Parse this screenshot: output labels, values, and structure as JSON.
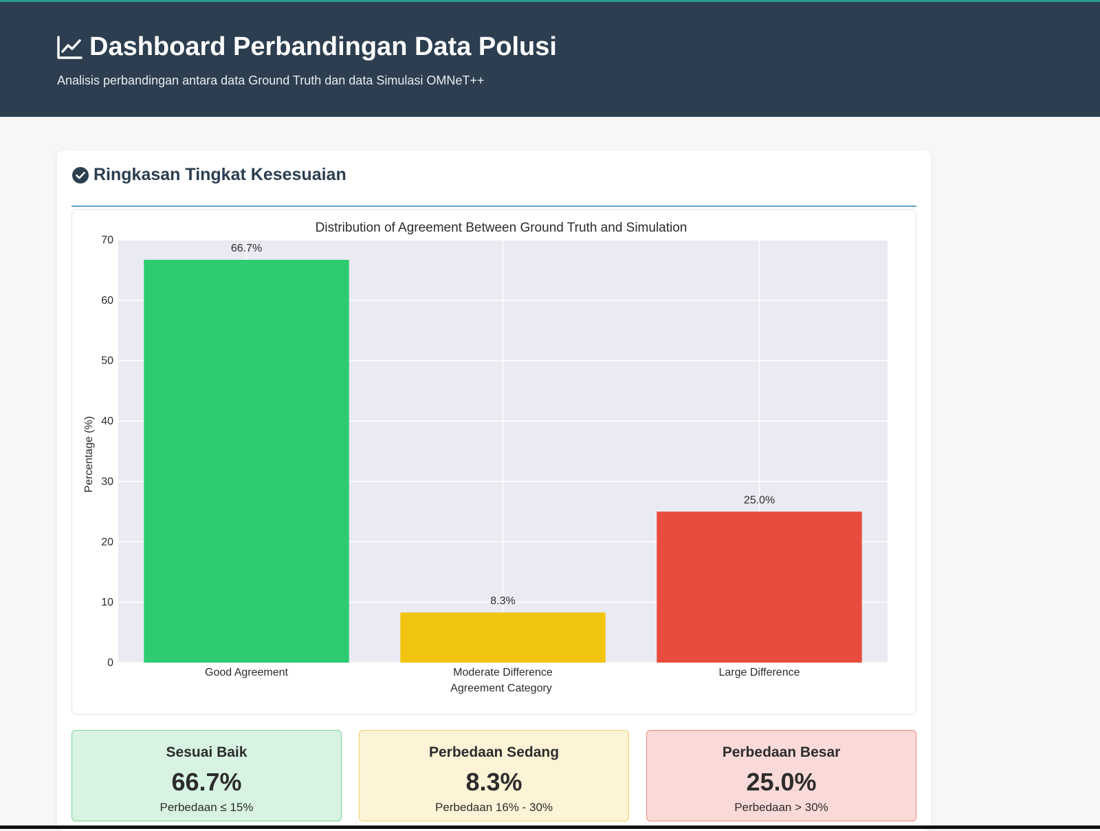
{
  "header": {
    "title": "Dashboard Perbandingan Data Polusi",
    "subtitle": "Analisis perbandingan antara data Ground Truth dan data Simulasi OMNeT++",
    "icon": "chart-line-icon"
  },
  "section": {
    "title": "Ringkasan Tingkat Kesesuaian",
    "icon": "check-circle-icon"
  },
  "chart_data": {
    "type": "bar",
    "title": "Distribution of Agreement Between Ground Truth and Simulation",
    "xlabel": "Agreement Category",
    "ylabel": "Percentage (%)",
    "categories": [
      "Good Agreement",
      "Moderate Difference",
      "Large Difference"
    ],
    "values": [
      66.7,
      8.3,
      25.0
    ],
    "data_labels": [
      "66.7%",
      "8.3%",
      "25.0%"
    ],
    "colors": [
      "#2ecc71",
      "#f1c40f",
      "#e74c3c"
    ],
    "ylim": [
      0,
      70
    ],
    "yticks": [
      0,
      10,
      20,
      30,
      40,
      50,
      60,
      70
    ],
    "grid": true,
    "plot_background": "#eaeaf2"
  },
  "stats": [
    {
      "title": "Sesuai Baik",
      "value": "66.7%",
      "note": "Perbedaan ≤ 15%"
    },
    {
      "title": "Perbedaan Sedang",
      "value": "8.3%",
      "note": "Perbedaan 16% - 30%"
    },
    {
      "title": "Perbedaan Besar",
      "value": "25.0%",
      "note": "Perbedaan > 30%"
    }
  ]
}
